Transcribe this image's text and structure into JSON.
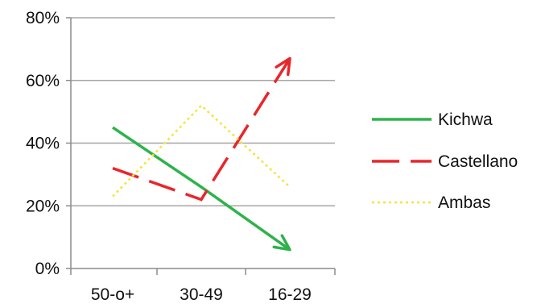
{
  "chart_data": {
    "type": "line",
    "categories": [
      "50-o+",
      "30-49",
      "16-29"
    ],
    "series": [
      {
        "name": "Kichwa",
        "values": [
          45,
          26,
          6
        ],
        "color": "#2db34a",
        "line_style": "solid",
        "arrow_at_end": true
      },
      {
        "name": "Castellano",
        "values": [
          32,
          22,
          67
        ],
        "color": "#e8262b",
        "line_style": "dashed",
        "arrow_at_end": true
      },
      {
        "name": "Ambas",
        "values": [
          23,
          52,
          26
        ],
        "color": "#f4e43a",
        "line_style": "dotted",
        "arrow_at_end": false
      }
    ],
    "y_ticks": [
      "0%",
      "20%",
      "40%",
      "60%",
      "80%"
    ],
    "ylim": [
      0,
      80
    ],
    "grid": true,
    "legend_position": "right"
  }
}
